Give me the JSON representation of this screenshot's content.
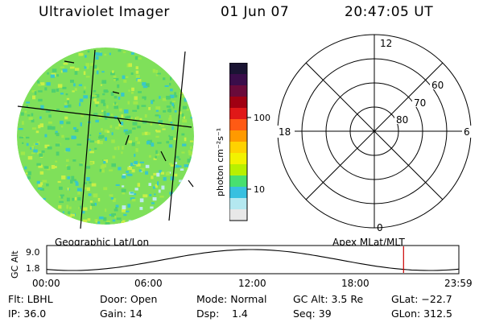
{
  "header": {
    "title": "Ultraviolet Imager",
    "date": "01 Jun 07",
    "time": "20:47:05 UT"
  },
  "colorbar": {
    "unit_label": "photon cm⁻²s⁻¹",
    "ticks": [
      "100",
      "10"
    ],
    "colors": [
      "#1a1433",
      "#3a0d4a",
      "#6a0a3a",
      "#a00012",
      "#e01818",
      "#ff5a14",
      "#ff9a00",
      "#ffd200",
      "#f2f200",
      "#b8f000",
      "#48e070",
      "#38c0e0",
      "#b4e8f0",
      "#e8e8e8"
    ]
  },
  "imager_disk": {
    "caption": "Geographic Lat/Lon",
    "base_color": "#7fe05a",
    "speckle_colors": [
      "#4fd070",
      "#9fe84a",
      "#c8ef46",
      "#38c8c8",
      "#bfeaf0"
    ]
  },
  "polar_grid": {
    "caption": "Apex MLat/MLT",
    "mlt_labels": [
      "12",
      "18",
      "6",
      "0"
    ],
    "lat_labels": [
      "60",
      "70",
      "80"
    ]
  },
  "altitude_plot": {
    "ylabel": "GC Alt",
    "y_ticks": [
      "9.0",
      "1.8"
    ],
    "x_ticks": [
      "00:00",
      "06:00",
      "12:00",
      "18:00",
      "23:59"
    ],
    "marker_color": "#cc0000",
    "marker_time_hours": 20.78
  },
  "footer": {
    "filter": "Flt: LBHL",
    "door": "Door: Open",
    "mode": "Mode: Normal",
    "gc_alt": "GC Alt: 3.5 Re",
    "glat": "GLat: −22.7",
    "ip": "IP: 36.0",
    "gain": "Gain: 14",
    "dsp_label": "Dsp:",
    "dsp_value": "1.4",
    "seq": "Seq: 39",
    "glon": "GLon: 312.5"
  }
}
